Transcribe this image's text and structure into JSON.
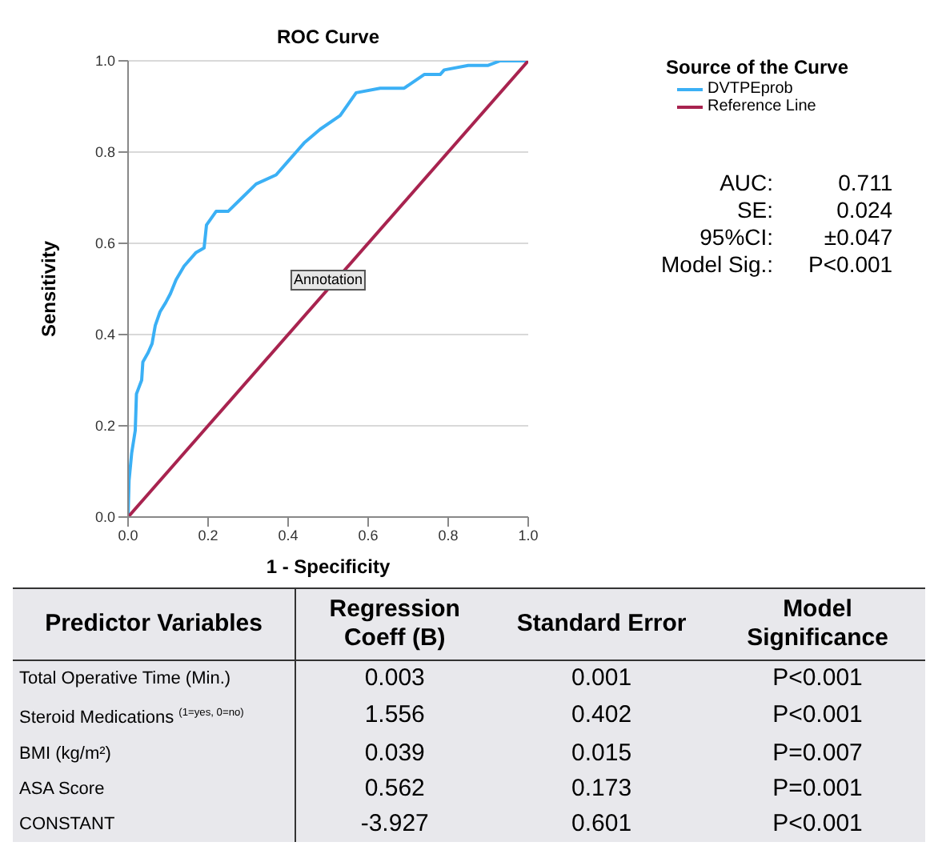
{
  "chart_data": [
    {
      "type": "line",
      "title": "ROC Curve",
      "xlabel": "1 - Specificity",
      "ylabel": "Sensitivity",
      "legend_title": "Source of the Curve",
      "legend": "top right",
      "grid": "y",
      "marker": "none",
      "line_style": "solid",
      "xlim": [
        0,
        1
      ],
      "ylim": [
        0,
        1
      ],
      "xticks": [
        {
          "value": 0,
          "label": "0.0"
        },
        {
          "value": 0.2,
          "label": "0.2"
        },
        {
          "value": 0.4,
          "label": "0.4"
        },
        {
          "value": 0.6,
          "label": "0.6"
        },
        {
          "value": 0.8,
          "label": "0.8"
        },
        {
          "value": 1,
          "label": "1.0"
        }
      ],
      "yticks": [
        {
          "value": 0,
          "label": "0.0"
        },
        {
          "value": 0.2,
          "label": "0.2"
        },
        {
          "value": 0.4,
          "label": "0.4"
        },
        {
          "value": 0.6,
          "label": "0.6"
        },
        {
          "value": 0.8,
          "label": "0.8"
        },
        {
          "value": 1,
          "label": "1.0"
        }
      ],
      "series": [
        {
          "name": "DVTPEprob",
          "color": "#3bb0f5",
          "x": [
            0,
            0.0025,
            0.009,
            0.018,
            0.021,
            0.034,
            0.037,
            0.05,
            0.06,
            0.068,
            0.08,
            0.094,
            0.106,
            0.12,
            0.14,
            0.17,
            0.19,
            0.196,
            0.22,
            0.25,
            0.285,
            0.32,
            0.37,
            0.4,
            0.42,
            0.44,
            0.48,
            0.53,
            0.57,
            0.63,
            0.69,
            0.74,
            0.78,
            0.79,
            0.85,
            0.9,
            0.93,
            1
          ],
          "values": [
            0,
            0.08,
            0.14,
            0.19,
            0.27,
            0.3,
            0.34,
            0.36,
            0.38,
            0.42,
            0.45,
            0.47,
            0.49,
            0.52,
            0.55,
            0.58,
            0.59,
            0.64,
            0.67,
            0.67,
            0.7,
            0.73,
            0.75,
            0.78,
            0.8,
            0.82,
            0.85,
            0.88,
            0.93,
            0.94,
            0.94,
            0.97,
            0.97,
            0.98,
            0.99,
            0.99,
            1,
            1
          ]
        },
        {
          "name": "Reference Line",
          "color": "#a8234f",
          "x": [
            0,
            1
          ],
          "values": [
            0,
            1
          ]
        }
      ],
      "annotations": [
        {
          "text": "Annotation",
          "x": 0.5,
          "y": 0.52
        },
        "AUC:",
        "0.711",
        "SE:",
        "0.024",
        "95%CI:",
        "±0.047",
        "Model Sig.:",
        "P<0.001"
      ]
    },
    {
      "type": "other",
      "annotations": [
        "Predictor Variables",
        "Regression Coeff (B)",
        "Standard Error",
        "Model Significance",
        "Total Operative Time (Min.)",
        "0.003",
        "0.001",
        "P<0.001",
        "Steroid Medications $^{(1=yes, 0=no)}$",
        "1.556",
        "0.402",
        "P<0.001",
        "BMI (kg/m²)",
        "0.039",
        "0.015",
        "P=0.007",
        "ASA Score",
        "0.562",
        "0.173",
        "P=0.001",
        "CONSTANT",
        "-3.927",
        "0.601",
        "P<0.001"
      ]
    }
  ]
}
